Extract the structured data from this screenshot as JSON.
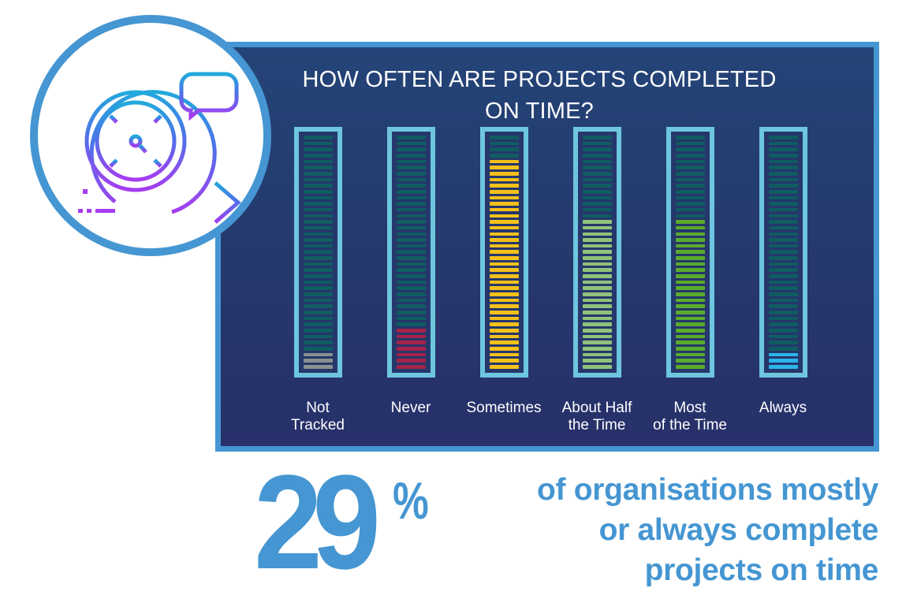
{
  "chart_data": {
    "type": "bar",
    "title": "HOW OFTEN ARE PROJECTS COMPLETED ON TIME?",
    "xlabel": "",
    "ylabel": "",
    "segments_per_bar": 39,
    "categories": [
      "Not Tracked",
      "Never",
      "Sometimes",
      "About Half the Time",
      "Most of the Time",
      "Always"
    ],
    "values": [
      3,
      7,
      35,
      25,
      25,
      3
    ],
    "value_units": "filled segments out of 39",
    "ylim": [
      0,
      39
    ],
    "grid": false,
    "legend": "none",
    "colors": [
      "#8a9090",
      "#a3234a",
      "#f5c01a",
      "#8fc27a",
      "#5aab2c",
      "#2bb5ea"
    ]
  },
  "icon": {
    "name": "clock-speed-arrow-chat-icon"
  },
  "panel": {
    "title_line1": "HOW OFTEN ARE PROJECTS COMPLETED",
    "title_line2": "ON TIME?",
    "empty_segment_color": "#0f5c62",
    "frame_color": "#6ec6de",
    "border_color": "#4596d2",
    "bars": [
      {
        "label_line1": "Not",
        "label_line2": "Tracked",
        "filled": 3,
        "color": "#8a9090"
      },
      {
        "label_line1": "Never",
        "label_line2": "",
        "filled": 7,
        "color": "#a3234a"
      },
      {
        "label_line1": "Sometimes",
        "label_line2": "",
        "filled": 35,
        "color": "#f5c01a"
      },
      {
        "label_line1": "About Half",
        "label_line2": "the Time",
        "filled": 25,
        "color": "#8fc27a"
      },
      {
        "label_line1": "Most",
        "label_line2": "of the Time",
        "filled": 25,
        "color": "#5aab2c"
      },
      {
        "label_line1": "Always",
        "label_line2": "",
        "filled": 3,
        "color": "#2bb5ea"
      }
    ]
  },
  "stat": {
    "number": "29",
    "percent_sign": "%",
    "caption_line1": "of organisations mostly",
    "caption_line2": "or always complete",
    "caption_line3": "projects on time",
    "color": "#4596d2"
  }
}
